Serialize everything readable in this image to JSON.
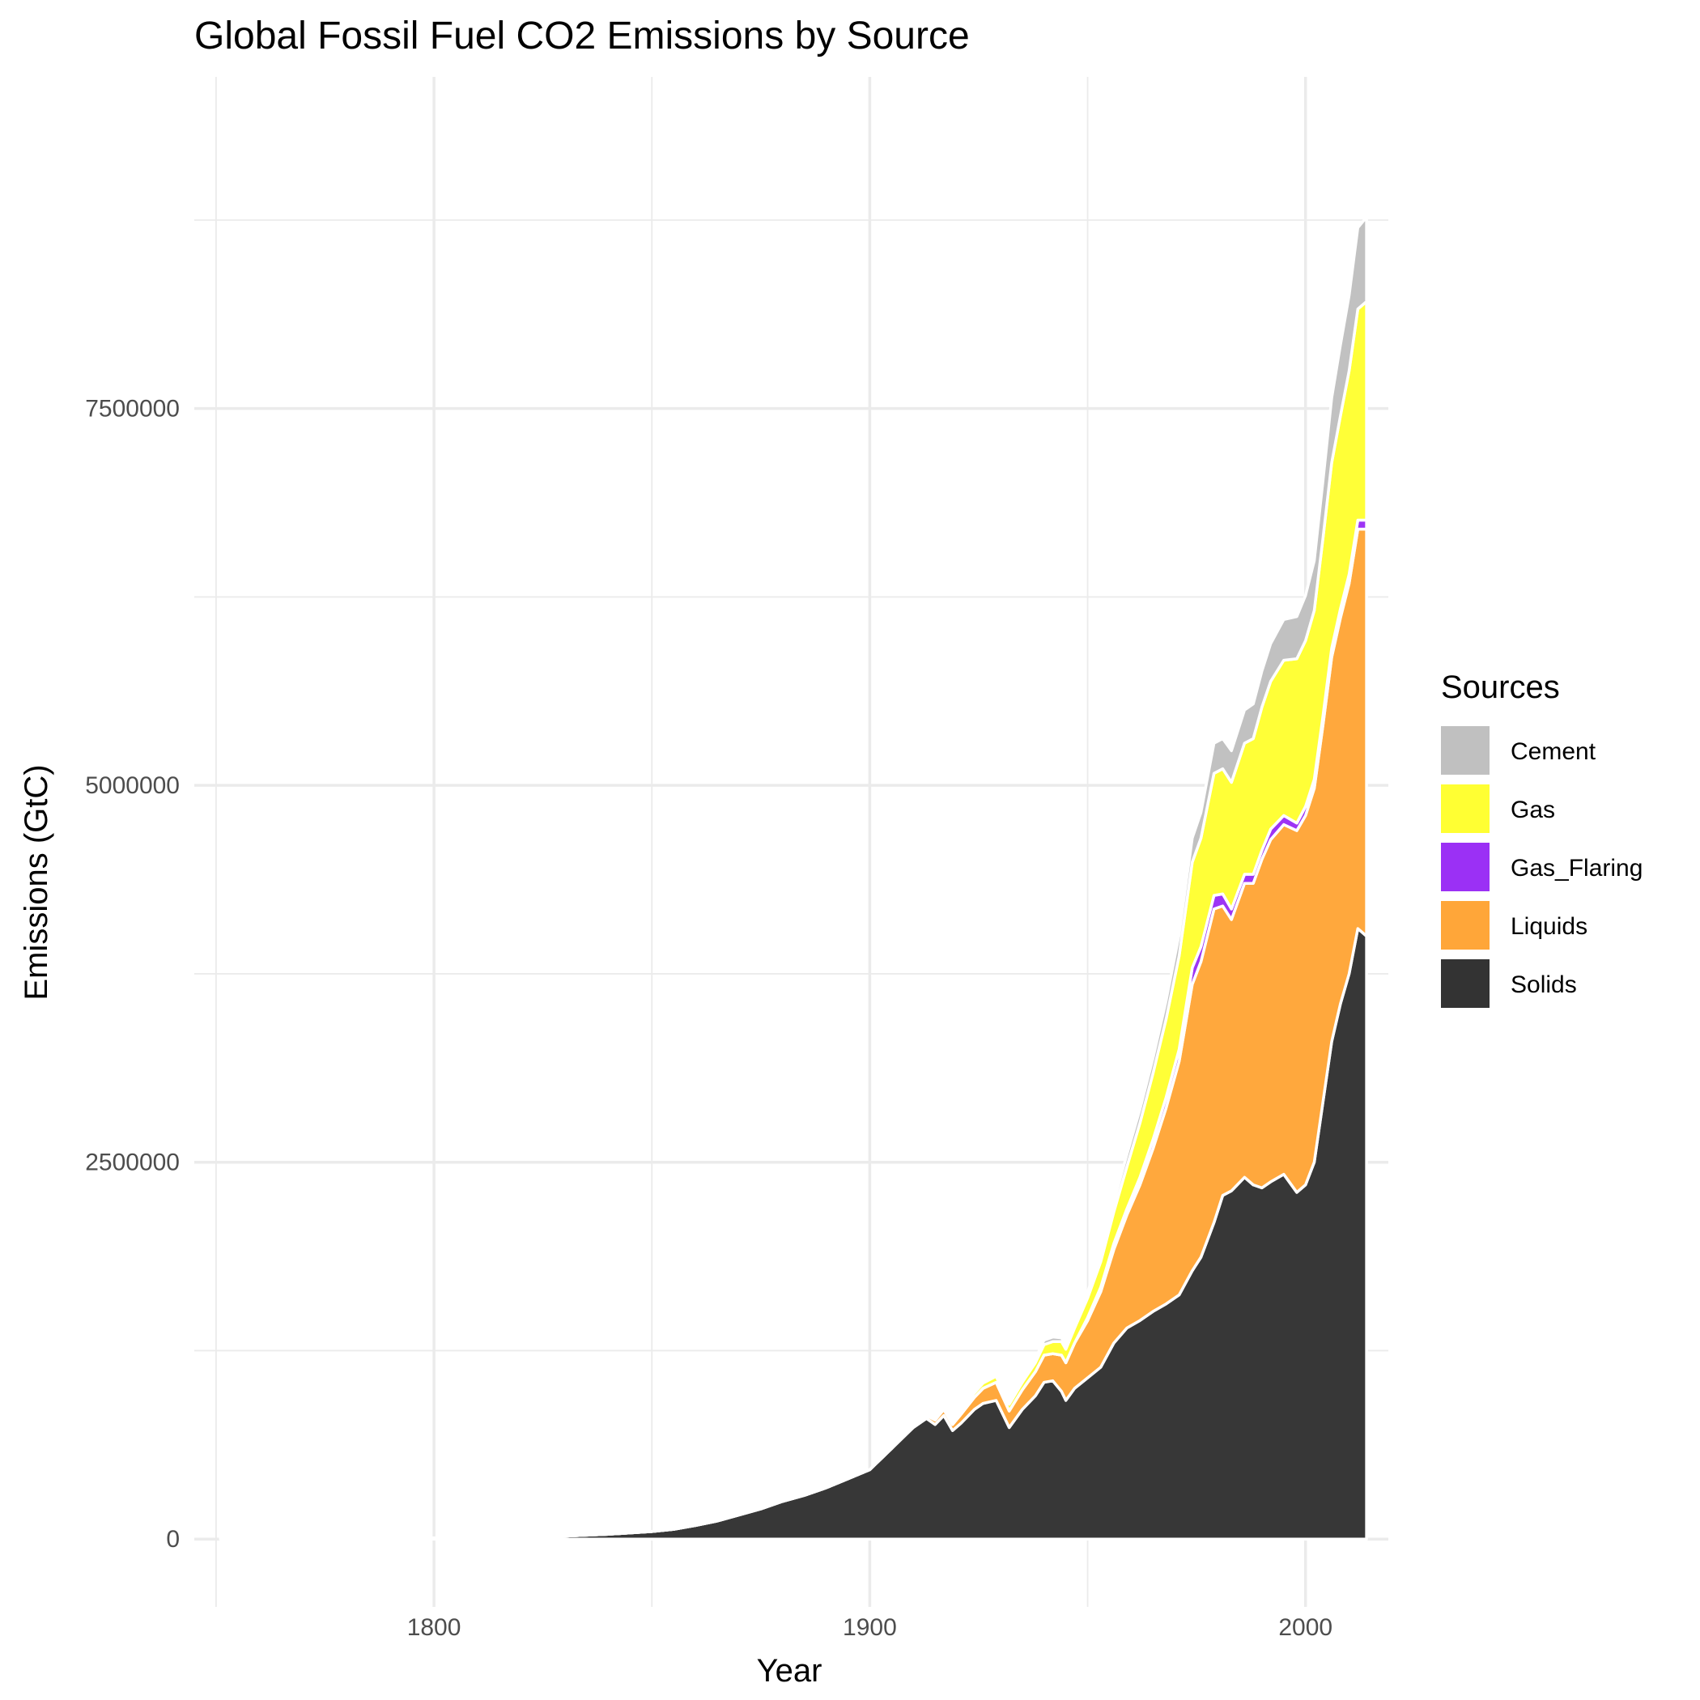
{
  "chart_data": {
    "type": "area",
    "stacked": true,
    "title": "Global Fossil Fuel CO2 Emissions by Source",
    "xlabel": "Year",
    "ylabel": "Emissions (GtC)",
    "xlim": [
      1745,
      2019
    ],
    "ylim": [
      -450000,
      9700000
    ],
    "x_ticks": [
      1800,
      1900,
      2000
    ],
    "x_tick_labels": [
      "1800",
      "1900",
      "2000"
    ],
    "y_ticks": [
      0,
      2500000,
      5000000,
      7500000
    ],
    "y_tick_labels": [
      "0",
      "2500000",
      "5000000",
      "7500000"
    ],
    "grid": true,
    "legend": {
      "title": "Sources",
      "position": "right"
    },
    "x": [
      1751,
      1800,
      1820,
      1830,
      1840,
      1850,
      1855,
      1860,
      1865,
      1870,
      1875,
      1880,
      1885,
      1890,
      1895,
      1900,
      1905,
      1910,
      1913,
      1915,
      1917,
      1919,
      1921,
      1924,
      1926,
      1929,
      1932,
      1935,
      1938,
      1940,
      1942,
      1944,
      1945,
      1947,
      1950,
      1953,
      1956,
      1959,
      1962,
      1965,
      1968,
      1971,
      1974,
      1976,
      1979,
      1981,
      1983,
      1986,
      1988,
      1990,
      1992,
      1995,
      1998,
      2000,
      2002,
      2004,
      2006,
      2008,
      2010,
      2012,
      2014
    ],
    "series": [
      {
        "name": "Solids",
        "color": "#333333",
        "values": [
          3000,
          8000,
          12000,
          20000,
          32000,
          50000,
          65000,
          90000,
          120000,
          160000,
          200000,
          250000,
          290000,
          340000,
          400000,
          460000,
          600000,
          740000,
          800000,
          760000,
          820000,
          720000,
          770000,
          860000,
          900000,
          920000,
          740000,
          860000,
          950000,
          1040000,
          1050000,
          980000,
          920000,
          1000000,
          1070000,
          1140000,
          1300000,
          1400000,
          1450000,
          1510000,
          1560000,
          1620000,
          1780000,
          1870000,
          2100000,
          2280000,
          2310000,
          2400000,
          2350000,
          2330000,
          2370000,
          2420000,
          2300000,
          2350000,
          2500000,
          2900000,
          3300000,
          3550000,
          3750000,
          4050000,
          4000000
        ]
      },
      {
        "name": "Liquids",
        "color": "#ffa639",
        "values": [
          0,
          0,
          0,
          0,
          0,
          0,
          0,
          0,
          0,
          0,
          0,
          0,
          0,
          0,
          0,
          0,
          0,
          10000,
          20000,
          30000,
          40000,
          40000,
          60000,
          80000,
          100000,
          120000,
          110000,
          130000,
          160000,
          180000,
          180000,
          240000,
          250000,
          300000,
          380000,
          500000,
          620000,
          750000,
          900000,
          1080000,
          1300000,
          1550000,
          1900000,
          1960000,
          2080000,
          1920000,
          1800000,
          1950000,
          2000000,
          2180000,
          2270000,
          2320000,
          2400000,
          2450000,
          2480000,
          2500000,
          2550000,
          2560000,
          2590000,
          2650000,
          2700000
        ]
      },
      {
        "name": "Gas_Flaring",
        "color": "#9b30f5",
        "values": [
          0,
          0,
          0,
          0,
          0,
          0,
          0,
          0,
          0,
          0,
          0,
          0,
          0,
          0,
          0,
          0,
          0,
          0,
          0,
          0,
          0,
          0,
          0,
          0,
          0,
          0,
          0,
          0,
          0,
          0,
          0,
          0,
          0,
          0,
          20000,
          30000,
          40000,
          40000,
          50000,
          60000,
          70000,
          80000,
          110000,
          100000,
          90000,
          80000,
          70000,
          60000,
          60000,
          60000,
          70000,
          60000,
          50000,
          60000,
          60000,
          60000,
          60000,
          60000,
          60000,
          60000,
          60000
        ]
      },
      {
        "name": "Gas",
        "color": "#ffff33",
        "values": [
          0,
          0,
          0,
          0,
          0,
          0,
          0,
          0,
          0,
          0,
          0,
          0,
          0,
          0,
          0,
          0,
          0,
          10000,
          12000,
          15000,
          18000,
          20000,
          25000,
          30000,
          35000,
          40000,
          45000,
          50000,
          60000,
          70000,
          80000,
          90000,
          90000,
          100000,
          130000,
          170000,
          210000,
          280000,
          360000,
          440000,
          520000,
          620000,
          700000,
          720000,
          810000,
          830000,
          840000,
          870000,
          900000,
          950000,
          980000,
          1030000,
          1090000,
          1100000,
          1120000,
          1180000,
          1230000,
          1280000,
          1350000,
          1400000,
          1450000
        ]
      },
      {
        "name": "Cement",
        "color": "#c0c0c0",
        "values": [
          0,
          0,
          0,
          0,
          0,
          0,
          0,
          0,
          0,
          0,
          0,
          0,
          0,
          0,
          0,
          0,
          0,
          5000,
          6000,
          7000,
          8000,
          9000,
          10000,
          12000,
          15000,
          18000,
          15000,
          20000,
          25000,
          30000,
          30000,
          25000,
          25000,
          30000,
          40000,
          50000,
          65000,
          80000,
          90000,
          100000,
          120000,
          140000,
          160000,
          170000,
          200000,
          200000,
          210000,
          220000,
          230000,
          240000,
          250000,
          270000,
          280000,
          300000,
          330000,
          380000,
          430000,
          470000,
          500000,
          540000,
          560000
        ]
      }
    ]
  }
}
